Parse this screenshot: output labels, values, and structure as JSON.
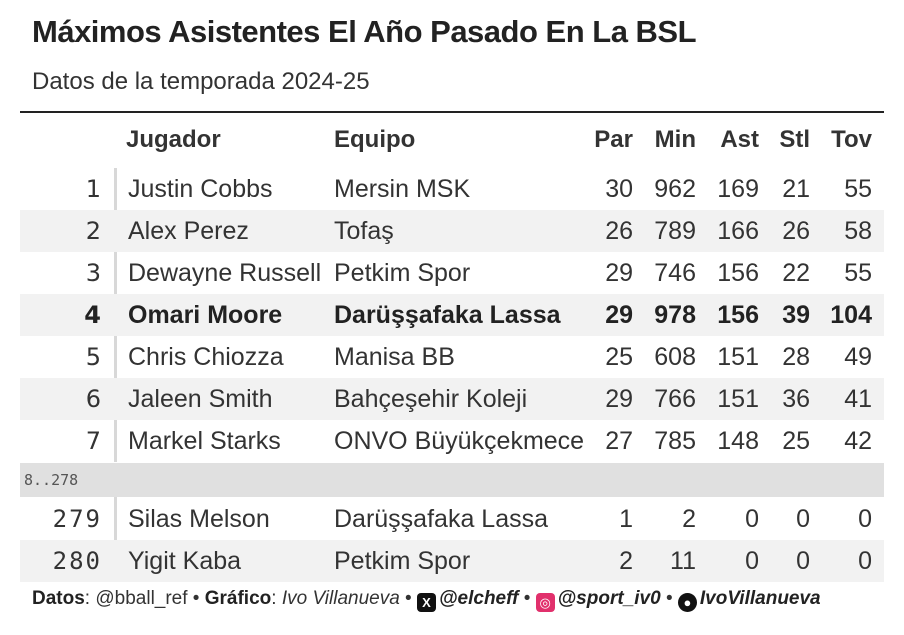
{
  "title": "Máximos Asistentes El Año Pasado En La BSL",
  "subtitle": "Datos de la temporada 2024-25",
  "columns": {
    "jugador": "Jugador",
    "equipo": "Equipo",
    "par": "Par",
    "min": "Min",
    "ast": "Ast",
    "stl": "Stl",
    "tov": "Tov"
  },
  "gap_label": "8..278",
  "chart_data": {
    "type": "table",
    "title": "Máximos Asistentes El Año Pasado En La BSL",
    "subtitle": "Datos de la temporada 2024-25",
    "columns": [
      "Jugador",
      "Equipo",
      "Par",
      "Min",
      "Ast",
      "Stl",
      "Tov"
    ],
    "highlighted_rank": "4",
    "rows": [
      {
        "rank": "1",
        "player": "Justin Cobbs",
        "team": "Mersin MSK",
        "par": "30",
        "min": "962",
        "ast": "169",
        "stl": "21",
        "tov": "55"
      },
      {
        "rank": "2",
        "player": "Alex Perez",
        "team": "Tofaş",
        "par": "26",
        "min": "789",
        "ast": "166",
        "stl": "26",
        "tov": "58"
      },
      {
        "rank": "3",
        "player": "Dewayne Russell",
        "team": "Petkim Spor",
        "par": "29",
        "min": "746",
        "ast": "156",
        "stl": "22",
        "tov": "55"
      },
      {
        "rank": "4",
        "player": "Omari Moore",
        "team": "Darüşşafaka Lassa",
        "par": "29",
        "min": "978",
        "ast": "156",
        "stl": "39",
        "tov": "104"
      },
      {
        "rank": "5",
        "player": "Chris Chiozza",
        "team": "Manisa BB",
        "par": "25",
        "min": "608",
        "ast": "151",
        "stl": "28",
        "tov": "49"
      },
      {
        "rank": "6",
        "player": "Jaleen Smith",
        "team": "Bahçeşehir Koleji",
        "par": "29",
        "min": "766",
        "ast": "151",
        "stl": "36",
        "tov": "41"
      },
      {
        "rank": "7",
        "player": "Markel Starks",
        "team": "ONVO Büyükçekmece",
        "par": "27",
        "min": "785",
        "ast": "148",
        "stl": "25",
        "tov": "42"
      },
      {
        "rank": "279",
        "player": "Silas Melson",
        "team": "Darüşşafaka Lassa",
        "par": "1",
        "min": "2",
        "ast": "0",
        "stl": "0",
        "tov": "0"
      },
      {
        "rank": "280",
        "player": "Yigit Kaba",
        "team": "Petkim Spor",
        "par": "2",
        "min": "11",
        "ast": "0",
        "stl": "0",
        "tov": "0"
      }
    ]
  },
  "footer": {
    "datos_label": "Datos",
    "datos_value": ": @bball_ref • ",
    "grafico_label": "Gráfico",
    "grafico_sep": ": ",
    "grafico_value": "Ivo Villanueva",
    "sep": " • ",
    "x_handle": "@elcheff",
    "ig_handle": "@sport_iv0",
    "gh_handle": "IvoVillanueva",
    "x_icon": "x-icon",
    "ig_icon": "instagram-icon",
    "gh_icon": "github-icon"
  }
}
